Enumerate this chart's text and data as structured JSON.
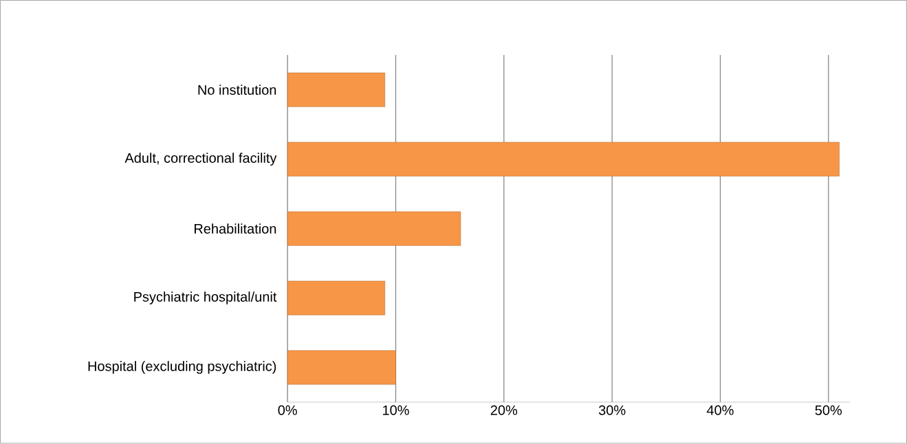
{
  "chart_data": {
    "type": "bar",
    "orientation": "horizontal",
    "categories": [
      "No institution",
      "Adult, correctional facility",
      "Rehabilitation",
      "Psychiatric hospital/unit",
      "Hospital (excluding psychiatric)"
    ],
    "values": [
      9,
      51,
      16,
      9,
      10
    ],
    "color": "#f79646",
    "xlim": [
      0,
      52
    ],
    "xticks": [
      {
        "value": 0,
        "label": "0%"
      },
      {
        "value": 10,
        "label": "10%"
      },
      {
        "value": 20,
        "label": "20%"
      },
      {
        "value": 30,
        "label": "30%"
      },
      {
        "value": 40,
        "label": "40%"
      },
      {
        "value": 50,
        "label": "50%"
      }
    ],
    "grid": "x"
  }
}
